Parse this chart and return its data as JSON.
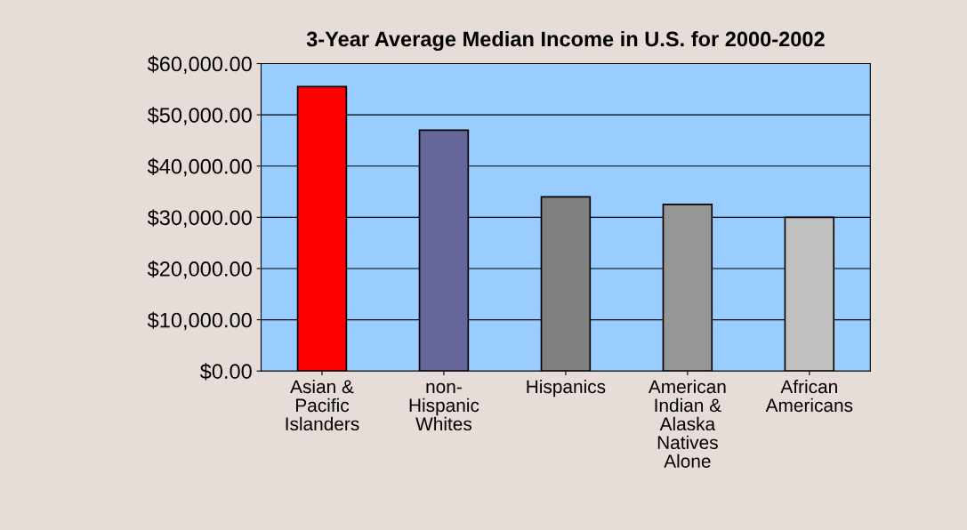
{
  "chart_data": {
    "type": "bar",
    "title": "3-Year Average Median Income in U.S. for 2000-2002",
    "categories": [
      "Asian &\nPacific\nIslanders",
      "non-\nHispanic\nWhites",
      "Hispanics",
      "American\nIndian &\nAlaska\nNatives\nAlone",
      "African\nAmericans"
    ],
    "values": [
      55500,
      47000,
      34000,
      32500,
      30000
    ],
    "colors": [
      "#ff0000",
      "#666699",
      "#808080",
      "#969696",
      "#c0c0c0"
    ],
    "ylim": [
      0,
      60000
    ],
    "yticks": [
      {
        "value": 0,
        "label": "$0.00"
      },
      {
        "value": 10000,
        "label": "$10,000.00"
      },
      {
        "value": 20000,
        "label": "$20,000.00"
      },
      {
        "value": 30000,
        "label": "$30,000.00"
      },
      {
        "value": 40000,
        "label": "$40,000.00"
      },
      {
        "value": 50000,
        "label": "$50,000.00"
      },
      {
        "value": 60000,
        "label": "$60,000.00"
      }
    ],
    "grid": "y"
  }
}
